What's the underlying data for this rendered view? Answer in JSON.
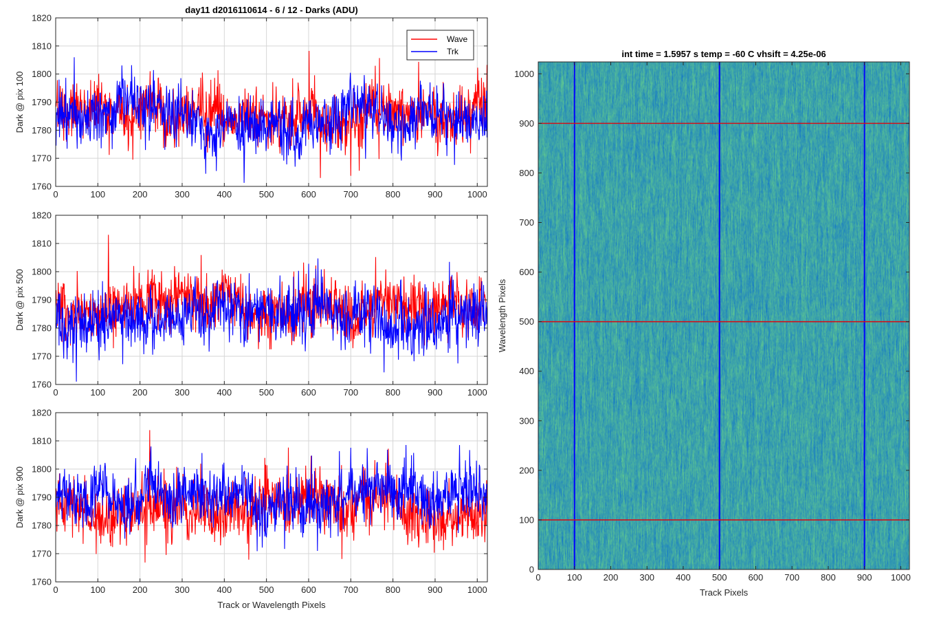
{
  "colors": {
    "wave": "#ff0000",
    "trk": "#0000ff",
    "grid": "#d6d6d6",
    "axis": "#262626",
    "heatmap_base": "#1e8fb8",
    "heatmap_light": "#3db5a5"
  },
  "chart_data": [
    {
      "type": "line",
      "title": "day11 d2016110614 - 6 / 12 - Darks (ADU)",
      "xlabel": "",
      "ylabel": "Dark @ pix 100",
      "xlim": [
        0,
        1024
      ],
      "ylim": [
        1760,
        1820
      ],
      "xticks": [
        "0",
        "100",
        "200",
        "300",
        "400",
        "500",
        "600",
        "700",
        "800",
        "900",
        "1000"
      ],
      "yticks": [
        "1760",
        "1770",
        "1780",
        "1790",
        "1800",
        "1810",
        "1820"
      ],
      "grid": true,
      "legend": {
        "placement": "top-right",
        "entries": [
          "Wave",
          "Trk"
        ]
      },
      "series": [
        {
          "name": "Wave",
          "color": "red",
          "approx_mean": 1786,
          "approx_range": [
            1763,
            1816
          ]
        },
        {
          "name": "Trk",
          "color": "blue",
          "approx_mean": 1783,
          "approx_range": [
            1761,
            1806
          ]
        }
      ]
    },
    {
      "type": "line",
      "title": "",
      "xlabel": "",
      "ylabel": "Dark @ pix 500",
      "xlim": [
        0,
        1024
      ],
      "ylim": [
        1760,
        1820
      ],
      "xticks": [
        "0",
        "100",
        "200",
        "300",
        "400",
        "500",
        "600",
        "700",
        "800",
        "900",
        "1000"
      ],
      "yticks": [
        "1760",
        "1770",
        "1780",
        "1790",
        "1800",
        "1810",
        "1820"
      ],
      "grid": true,
      "series": [
        {
          "name": "Wave",
          "color": "red",
          "approx_mean": 1787,
          "approx_range": [
            1763,
            1815
          ]
        },
        {
          "name": "Trk",
          "color": "blue",
          "approx_mean": 1785,
          "approx_range": [
            1761,
            1812
          ]
        }
      ]
    },
    {
      "type": "line",
      "title": "",
      "xlabel": "Track or Wavelength Pixels",
      "ylabel": "Dark @ pix 900",
      "xlim": [
        0,
        1024
      ],
      "ylim": [
        1760,
        1820
      ],
      "xticks": [
        "0",
        "100",
        "200",
        "300",
        "400",
        "500",
        "600",
        "700",
        "800",
        "900",
        "1000"
      ],
      "yticks": [
        "1760",
        "1770",
        "1780",
        "1790",
        "1800",
        "1810",
        "1820"
      ],
      "grid": true,
      "series": [
        {
          "name": "Wave",
          "color": "red",
          "approx_mean": 1786,
          "approx_range": [
            1762,
            1818
          ]
        },
        {
          "name": "Trk",
          "color": "blue",
          "approx_mean": 1791,
          "approx_range": [
            1765,
            1815
          ]
        }
      ]
    },
    {
      "type": "heatmap",
      "title": "int time = 1.5957 s    temp = -60 C    vhsift = 4.25e-06",
      "xlabel": "Track Pixels",
      "ylabel": "Wavelength Pixels",
      "xlim": [
        0,
        1024
      ],
      "ylim": [
        0,
        1024
      ],
      "xticks": [
        "0",
        "100",
        "200",
        "300",
        "400",
        "500",
        "600",
        "700",
        "800",
        "900",
        "1000"
      ],
      "yticks": [
        "0",
        "100",
        "200",
        "300",
        "400",
        "500",
        "600",
        "700",
        "800",
        "900",
        "1000"
      ],
      "markers": {
        "vertical_lines_x": [
          100,
          500,
          900
        ],
        "vertical_color": "blue",
        "horizontal_lines_y": [
          100,
          500,
          900
        ],
        "horizontal_color": "red"
      }
    }
  ]
}
